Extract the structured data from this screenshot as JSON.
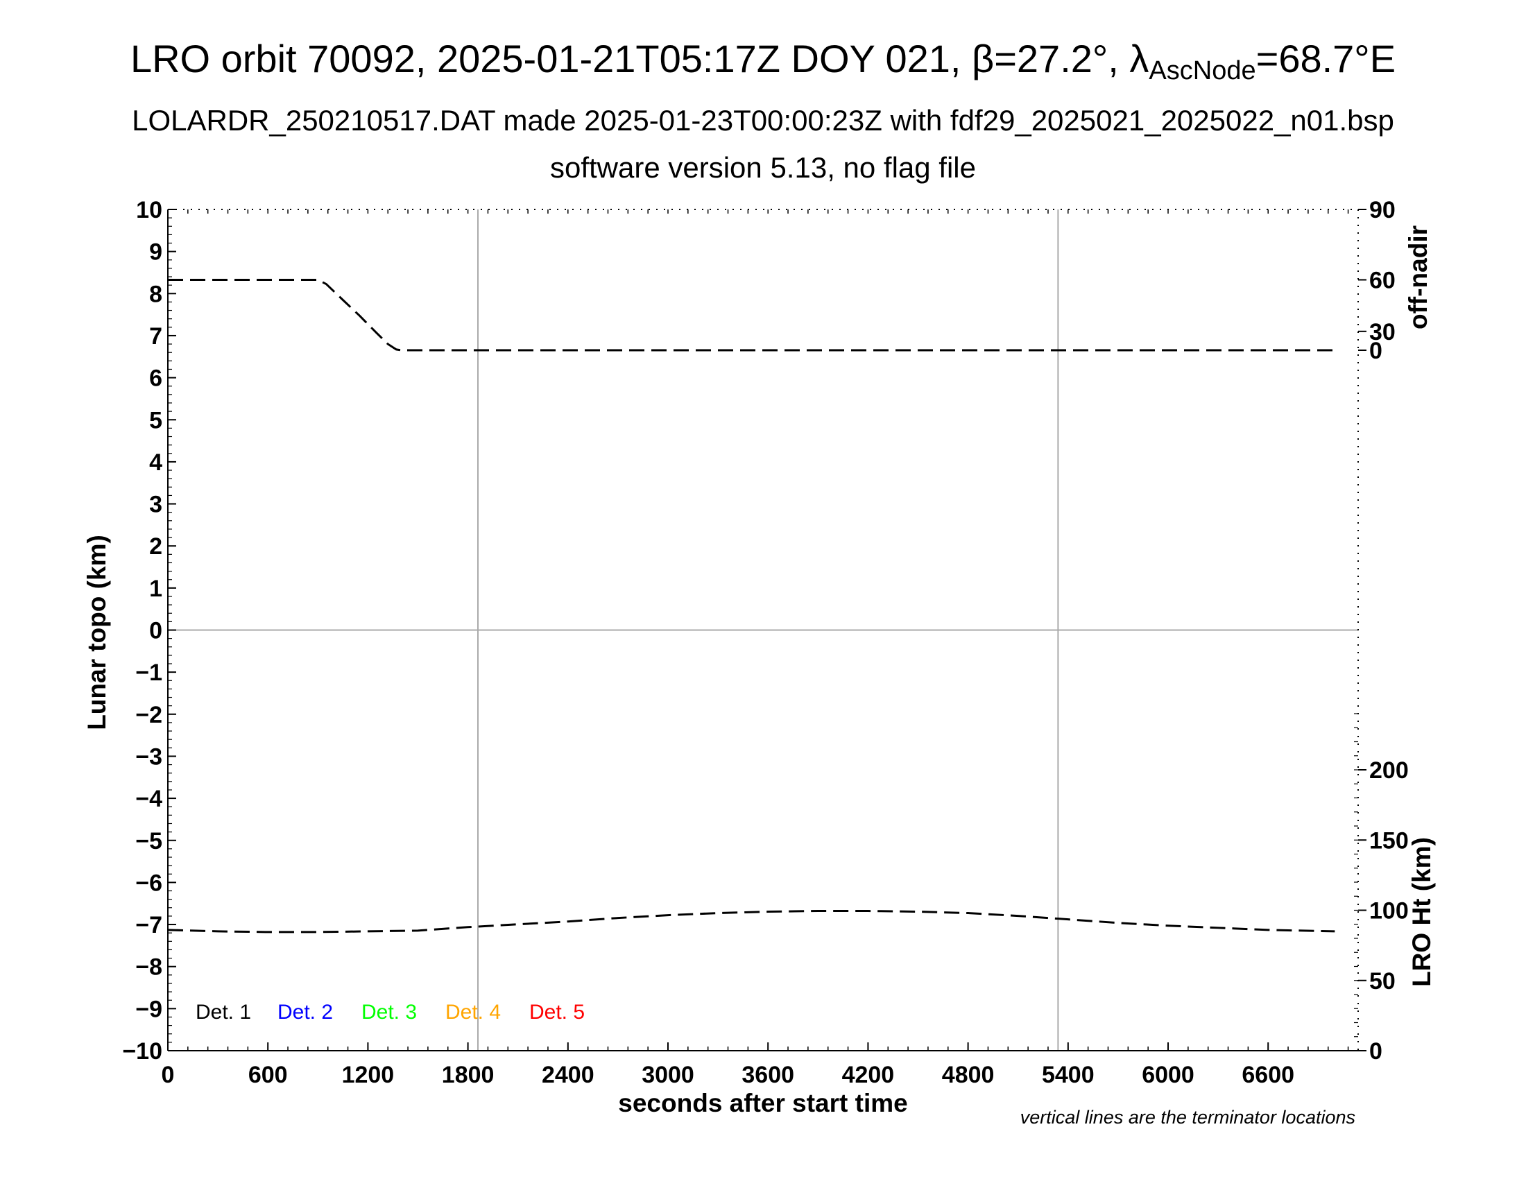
{
  "header": {
    "title_main": "LRO orbit 70092, 2025-01-21T05:17Z DOY 021, β=27.2°, λ",
    "title_sub": "AscNode",
    "title_end": "=68.7°E",
    "subtitle": "LOLARDR_250210517.DAT made 2025-01-23T00:00:23Z with fdf29_2025021_2025022_n01.bsp",
    "subtitle2": "software version 5.13, no flag file"
  },
  "footer": {
    "note": "vertical lines are the terminator locations"
  },
  "chart_data": {
    "type": "line",
    "xlabel": "seconds after start time",
    "ylabel": "Lunar topo (km)",
    "y2label_top": "off-nadir",
    "y2label_bottom": "LRO Ht (km)",
    "xlim": [
      0,
      7140
    ],
    "ylim": [
      -10,
      10
    ],
    "x_ticks": [
      0,
      600,
      1200,
      1800,
      2400,
      3000,
      3600,
      4200,
      4800,
      5400,
      6000,
      6600
    ],
    "y_ticks": [
      10,
      9,
      8,
      7,
      6,
      5,
      4,
      3,
      2,
      1,
      0,
      -1,
      -2,
      -3,
      -4,
      -5,
      -6,
      -7,
      -8,
      -9,
      -10
    ],
    "y_tick_labels": [
      "10",
      "9",
      "8",
      "7",
      "6",
      "5",
      "4",
      "3",
      "2",
      "1",
      "0",
      "−1",
      "−2",
      "−3",
      "−4",
      "−5",
      "−6",
      "−7",
      "−8",
      "−9",
      "−10"
    ],
    "off_nadir_ticks": [
      0,
      30,
      60,
      90
    ],
    "lro_ht_ticks": [
      0,
      50,
      100,
      150,
      200
    ],
    "terminator_lines_x": [
      1860,
      5340
    ],
    "grid": false,
    "series": [
      {
        "axis": "off-nadir",
        "style": "dashed",
        "color": "#000000",
        "x": [
          0,
          300,
          600,
          900,
          950,
          1050,
          1150,
          1250,
          1320,
          1370,
          1400,
          1420,
          1800,
          2400,
          3000,
          3600,
          4200,
          4800,
          5400,
          6000,
          6600,
          7000
        ],
        "values": [
          60,
          60,
          60,
          60,
          58,
          50,
          41,
          29,
          17,
          6,
          0,
          0,
          0,
          0,
          0,
          0,
          0,
          0,
          0,
          0,
          0,
          0
        ]
      },
      {
        "axis": "LRO Ht (km)",
        "style": "dashed",
        "color": "#000000",
        "x": [
          0,
          300,
          600,
          900,
          1200,
          1500,
          1800,
          2100,
          2400,
          2700,
          3000,
          3300,
          3600,
          3900,
          4200,
          4500,
          4800,
          5100,
          5400,
          5700,
          6000,
          6300,
          6600,
          7000
        ],
        "values": [
          86,
          85,
          84.5,
          84.5,
          85,
          85.5,
          88,
          90,
          92,
          94.5,
          96.5,
          98,
          99,
          99.5,
          99.5,
          99,
          98,
          96,
          93.5,
          91,
          89,
          87.5,
          86,
          85
        ]
      }
    ],
    "legend": [
      {
        "label": "Det. 1",
        "color": "#000000"
      },
      {
        "label": "Det. 2",
        "color": "#0000ff"
      },
      {
        "label": "Det. 3",
        "color": "#00ff00"
      },
      {
        "label": "Det. 4",
        "color": "#ffa500"
      },
      {
        "label": "Det. 5",
        "color": "#ff0000"
      }
    ],
    "legend_placement": "bottom-left"
  }
}
